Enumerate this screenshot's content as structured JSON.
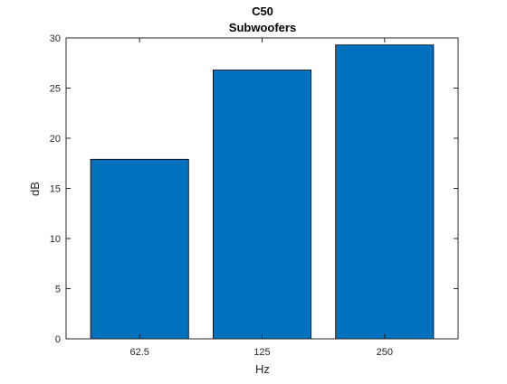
{
  "chart_data": {
    "type": "bar",
    "title": "C50",
    "subtitle": "Subwoofers",
    "xlabel": "Hz",
    "ylabel": "dB",
    "categories": [
      "62.5",
      "125",
      "250"
    ],
    "values": [
      17.9,
      26.8,
      29.3
    ],
    "ylim": [
      0,
      30
    ],
    "yticks": [
      0,
      5,
      10,
      15,
      20,
      25,
      30
    ],
    "grid": false,
    "bar_color": "#0072BD",
    "bar_edge_color": "#000000"
  }
}
